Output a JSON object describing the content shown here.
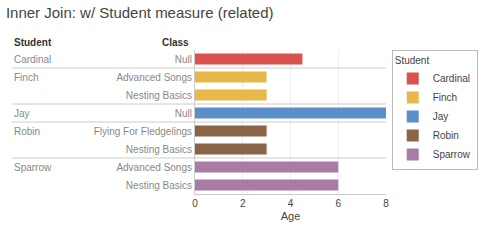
{
  "chart_data": {
    "type": "bar",
    "orientation": "horizontal",
    "title": "Inner Join: w/ Student measure (related)",
    "xlabel": "Age",
    "legend_title": "Student",
    "annotations": [
      {
        "text": "Student"
      },
      {
        "text": "Class"
      }
    ],
    "categories": [
      "Null",
      "Advanced Songs",
      "Nesting Basics",
      "Null",
      "Flying For Fledgelings",
      "Nesting Basics",
      "Advanced Songs",
      "Nesting Basics"
    ],
    "series": [
      {
        "name": "Cardinal",
        "color": "#D9524E",
        "values": [
          4.5,
          null,
          null,
          null,
          null,
          null,
          null,
          null
        ]
      },
      {
        "name": "Finch",
        "color": "#E8B84B",
        "values": [
          null,
          3.0,
          3.0,
          null,
          null,
          null,
          null,
          null
        ]
      },
      {
        "name": "Jay",
        "color": "#5B8FC9",
        "values": [
          null,
          null,
          null,
          8.0,
          null,
          null,
          null,
          null
        ]
      },
      {
        "name": "Robin",
        "color": "#8B6347",
        "values": [
          null,
          null,
          null,
          null,
          3.0,
          3.0,
          null,
          null
        ]
      },
      {
        "name": "Sparrow",
        "color": "#A97CA8",
        "values": [
          null,
          null,
          null,
          null,
          null,
          null,
          6.0,
          6.0
        ]
      }
    ],
    "xlim": [
      0,
      8
    ],
    "xticks": [
      0,
      2,
      4,
      6,
      8
    ],
    "grid": true
  }
}
